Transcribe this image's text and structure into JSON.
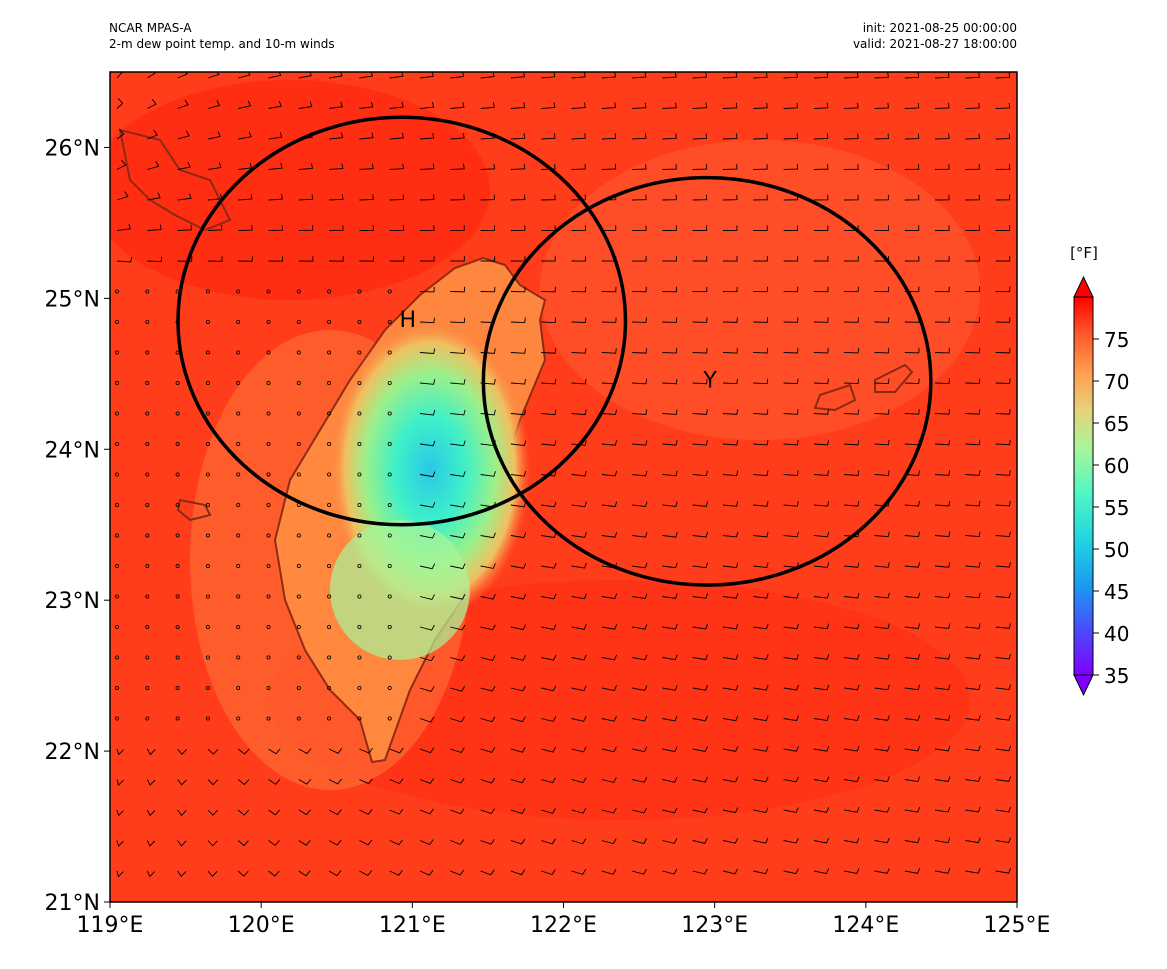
{
  "header": {
    "source": "NCAR MPAS-A",
    "variable": "2-m dew point temp. and 10-m winds",
    "init": "init: 2021-08-25 00:00:00",
    "valid": "valid: 2021-08-27 18:00:00"
  },
  "axes": {
    "lon_ticks": [
      "119°E",
      "120°E",
      "121°E",
      "122°E",
      "123°E",
      "124°E",
      "125°E"
    ],
    "lat_ticks": [
      "21°N",
      "22°N",
      "23°N",
      "24°N",
      "25°N",
      "26°N"
    ],
    "lon_range": [
      119,
      125
    ],
    "lat_range": [
      21,
      26.5
    ]
  },
  "colorbar": {
    "unit": "[°F]",
    "ticks": [
      "35",
      "40",
      "45",
      "50",
      "55",
      "60",
      "65",
      "70",
      "75"
    ],
    "range": [
      35,
      80
    ],
    "extend": "both",
    "colormap": "rainbow"
  },
  "markers": [
    {
      "label": "H",
      "lon": 120.97,
      "lat": 24.85
    },
    {
      "label": "Y",
      "lon": 122.97,
      "lat": 24.45
    }
  ],
  "circles": [
    {
      "center_lon": 120.93,
      "center_lat": 24.85,
      "lon_radius": 1.48,
      "lat_radius": 1.35
    },
    {
      "center_lon": 122.95,
      "center_lat": 24.45,
      "lon_radius": 1.48,
      "lat_radius": 1.35
    }
  ],
  "colors": {
    "ocean_field": "#ff3d1a",
    "dry_core": "#3ef0c8",
    "coastline": "#8a2a14",
    "circle_stroke": "#000000"
  }
}
